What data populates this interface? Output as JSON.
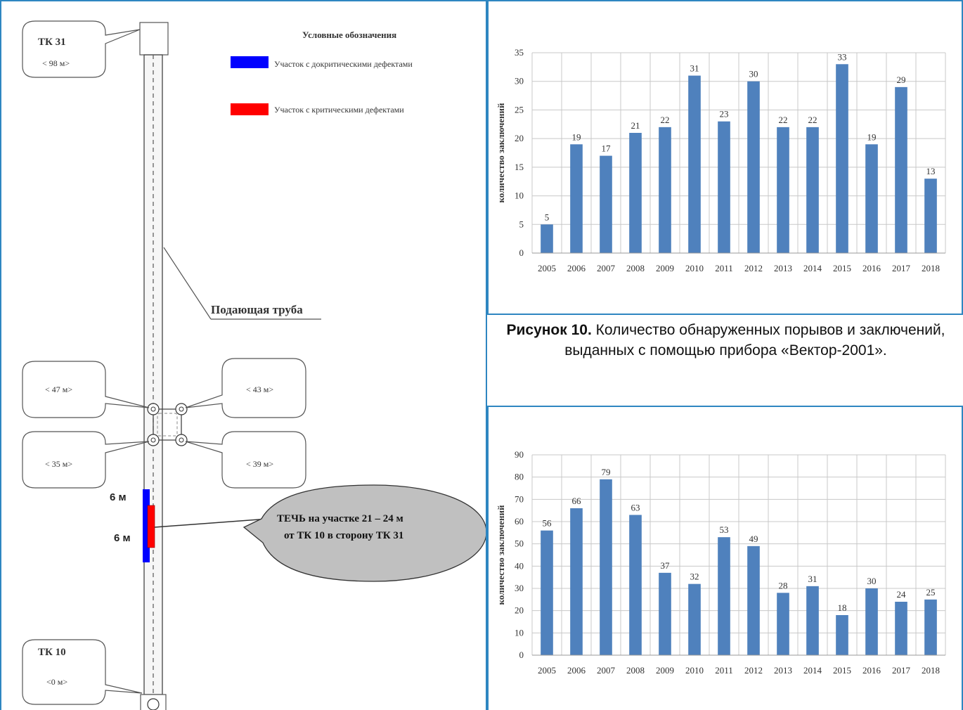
{
  "diagram": {
    "tk_top": {
      "name": "ТК  31",
      "dist": "< 98 м>"
    },
    "tk_bottom": {
      "name": "ТК  10",
      "dist": "<0 м>"
    },
    "legend_title": "Условные обозначения",
    "legend_items": [
      {
        "label": "Участок с докритическими дефектами",
        "color": "#0000ff"
      },
      {
        "label": "Участок с критическими дефектами",
        "color": "#ff0000"
      }
    ],
    "pipe_label": "Подающая труба",
    "callouts": {
      "left_upper": "< 47 м>",
      "right_upper": "< 43 м>",
      "left_lower": "< 35 м>",
      "right_lower": "< 39 м>"
    },
    "seg_label_1": "6 м",
    "seg_label_2": "6 м",
    "leak_line_1": "ТЕЧЬ на участке 21 – 24 м",
    "leak_line_2": "от ТК 10 в сторону ТК 31"
  },
  "caption": {
    "bold": "Рисунок 10.",
    "text": " Количество обнаруженных порывов и заключений, выданных с помощью прибора «Вектор-2001»."
  },
  "chart_data": [
    {
      "type": "bar",
      "categories": [
        "2005",
        "2006",
        "2007",
        "2008",
        "2009",
        "2010",
        "2011",
        "2012",
        "2013",
        "2014",
        "2015",
        "2016",
        "2017",
        "2018"
      ],
      "values": [
        5,
        19,
        17,
        21,
        22,
        31,
        23,
        30,
        22,
        22,
        33,
        19,
        29,
        13
      ],
      "ylabel": "количество заключений",
      "ylim": [
        0,
        35
      ],
      "yticks": [
        0,
        5,
        10,
        15,
        20,
        25,
        30,
        35
      ],
      "grid": true,
      "color": "#4f81bd"
    },
    {
      "type": "bar",
      "categories": [
        "2005",
        "2006",
        "2007",
        "2008",
        "2009",
        "2010",
        "2011",
        "2012",
        "2013",
        "2014",
        "2015",
        "2016",
        "2017",
        "2018"
      ],
      "values": [
        56,
        66,
        79,
        63,
        37,
        32,
        53,
        49,
        28,
        31,
        18,
        30,
        24,
        25
      ],
      "ylabel": "количество заключений",
      "ylim": [
        0,
        90
      ],
      "yticks": [
        0,
        10,
        20,
        30,
        40,
        50,
        60,
        70,
        80,
        90
      ],
      "grid": true,
      "color": "#4f81bd"
    }
  ]
}
